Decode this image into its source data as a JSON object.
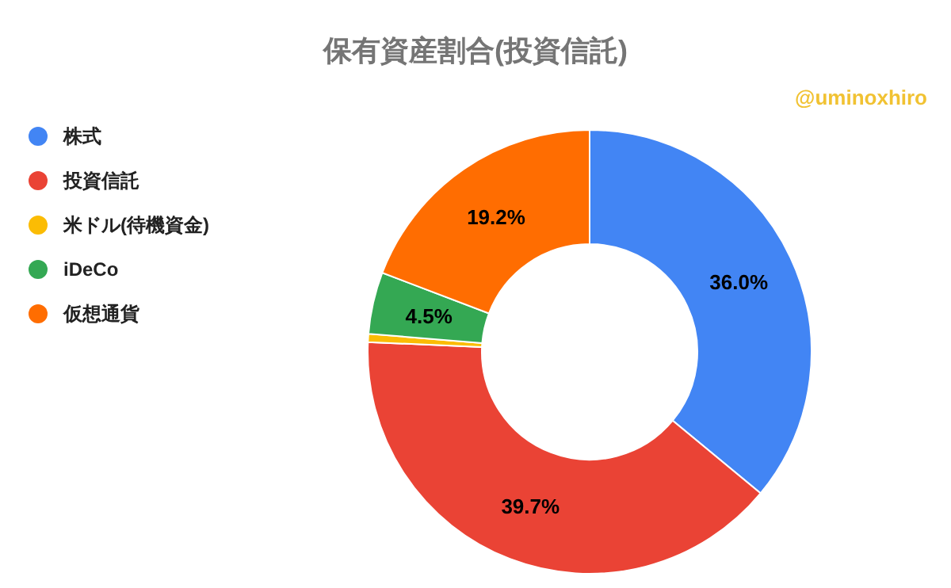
{
  "chart_data": {
    "type": "donut",
    "title": "保有資産割合(投資信託)",
    "categories": [
      "株式",
      "投資信託",
      "米ドル(待機資金)",
      "iDeCo",
      "仮想通貨"
    ],
    "values": [
      36.0,
      39.7,
      0.6,
      4.5,
      19.2
    ],
    "colors": [
      "#4285f4",
      "#ea4335",
      "#fbbc04",
      "#34a853",
      "#ff6d01"
    ],
    "value_labels": [
      "36.0%",
      "39.7%",
      null,
      "4.5%",
      "19.2%"
    ],
    "annotations": [
      "@uminoxhiro"
    ],
    "legend": "left"
  }
}
